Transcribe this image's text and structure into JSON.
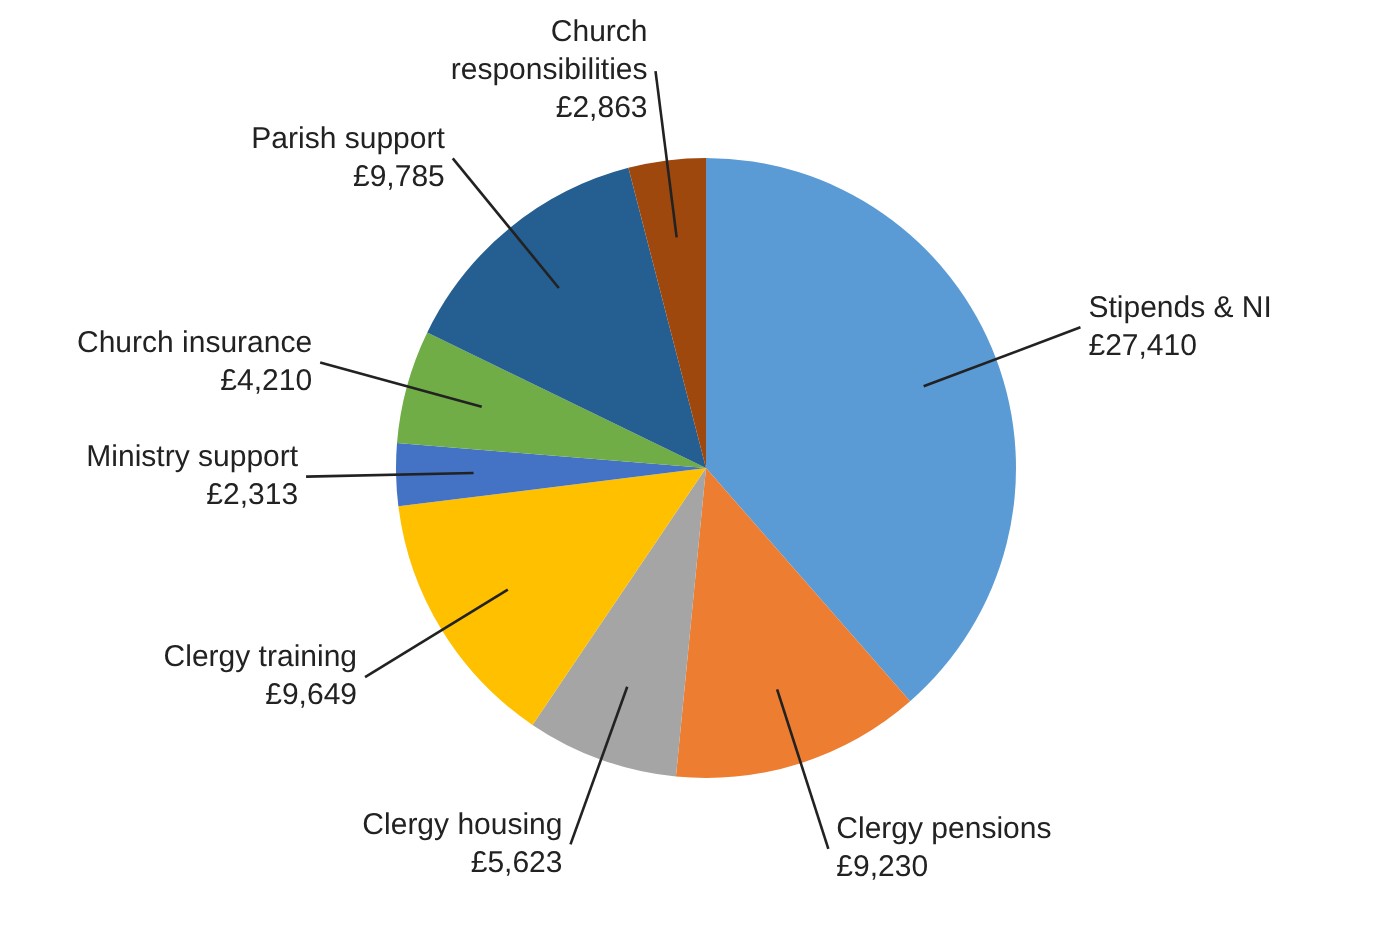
{
  "chart_data": {
    "type": "pie",
    "categories": [
      "Stipends & NI",
      "Clergy pensions",
      "Clergy housing",
      "Clergy training",
      "Ministry support",
      "Church insurance",
      "Parish support",
      "Church responsibilities"
    ],
    "values": [
      27410,
      9230,
      5623,
      9649,
      2313,
      4210,
      9785,
      2863
    ],
    "value_labels": [
      "£27,410",
      "£9,230",
      "£5,623",
      "£9,649",
      "£2,313",
      "£4,210",
      "£9,785",
      "£2,863"
    ],
    "colors": [
      "#5b9bd5",
      "#ed7d31",
      "#a5a5a5",
      "#ffc000",
      "#4472c4",
      "#70ad47",
      "#255e91",
      "#9e480e"
    ],
    "legend": false
  }
}
